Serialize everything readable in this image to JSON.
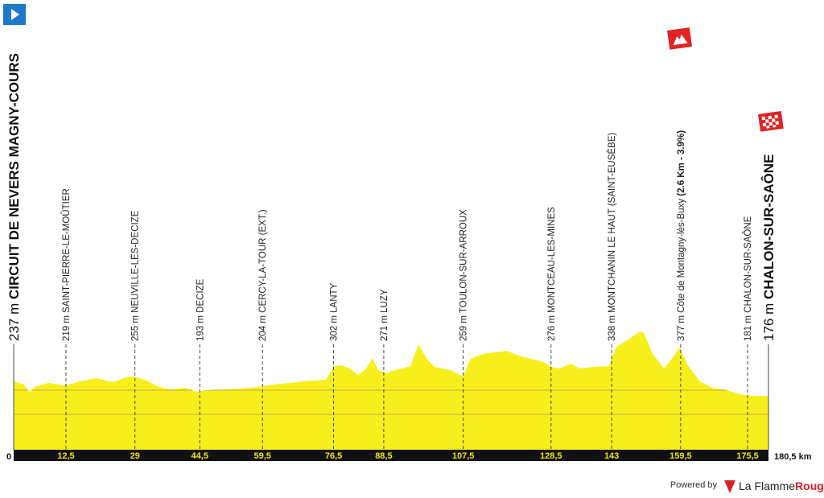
{
  "chart_data": {
    "type": "profile",
    "xlim": [
      0,
      180.5
    ],
    "xticks": [
      0,
      {
        "value": 12.5,
        "label": "12,5"
      },
      29,
      {
        "value": 44.5,
        "label": "44,5"
      },
      {
        "value": 59.5,
        "label": "59,5"
      },
      {
        "value": 76.5,
        "label": "76,5"
      },
      {
        "value": 88.5,
        "label": "88,5"
      },
      {
        "value": 107.5,
        "label": "107,5"
      },
      {
        "value": 128.5,
        "label": "128,5"
      },
      143,
      {
        "value": 159.5,
        "label": "159,5"
      },
      {
        "value": 175.5,
        "label": "175,5"
      },
      {
        "value": 180.5,
        "label": "180,5 km"
      }
    ],
    "waypoints": [
      {
        "altitude": 237,
        "altitude_label": "237 m",
        "name": "CIRCUIT DE NEVERS MAGNY-COURS"
      },
      {
        "altitude": 219,
        "altitude_label": "219 m",
        "name": "SAINT-PIERRE-LE-MOÛTIER"
      },
      {
        "altitude": 255,
        "altitude_label": "255 m",
        "name": "NEUVILLE-LÈS-DECIZE"
      },
      {
        "altitude": 193,
        "altitude_label": "193 m",
        "name": "DECIZE"
      },
      {
        "altitude": 204,
        "altitude_label": "204 m",
        "name": "CERCY-LA-TOUR (EXT.)"
      },
      {
        "altitude": 302,
        "altitude_label": "302 m",
        "name": "LANTY"
      },
      {
        "altitude": 271,
        "altitude_label": "271 m",
        "name": "LUZY"
      },
      {
        "altitude": 259,
        "altitude_label": "259 m",
        "name": "TOULON-SUR-ARROUX"
      },
      {
        "altitude": 276,
        "altitude_label": "276 m",
        "name": "MONTCEAU-LES-MINES"
      },
      {
        "altitude": 338,
        "altitude_label": "338 m",
        "name": "MONTCHANIN LE HAUT (SAINT-EUSÈBE)"
      },
      {
        "altitude": 377,
        "altitude_label": "377 m",
        "name": "Côte de Montagny-lès-Buxy",
        "detail": "(2.6 Km - 3.9%)"
      },
      {
        "altitude": 181,
        "altitude_label": "181 m",
        "name": "CHALON-SUR-SAÔNE"
      },
      {
        "altitude": 176,
        "altitude_label": "176 m",
        "name": "CHALON-SUR-SAÔNE"
      }
    ],
    "profile": {
      "color": "#f7ef1c",
      "x": [
        0,
        2.5,
        3.8,
        5.4,
        8.3,
        11.2,
        12.5,
        16,
        19.8,
        23.7,
        27.5,
        29,
        31.4,
        34.3,
        37.1,
        41,
        43.9,
        45.8,
        49.6,
        54.5,
        58.3,
        62.2,
        66,
        69.8,
        74.7,
        76.6,
        78.5,
        80.4,
        82.4,
        84.3,
        85.8,
        87.2,
        89.1,
        91,
        92.9,
        94.9,
        96.8,
        98.7,
        100.6,
        104.5,
        107.4,
        109.3,
        112.2,
        115.1,
        118,
        120.8,
        123.7,
        126.6,
        128.5,
        130.5,
        133.3,
        135.3,
        139.1,
        142.4,
        144,
        147,
        149.7,
        150.7,
        152.8,
        155.5,
        157.4,
        159.3,
        161.2,
        164.1,
        167,
        169.9,
        173.8,
        175.7,
        180.5
      ],
      "values": [
        237,
        223,
        193,
        217,
        230,
        223,
        219,
        237,
        250,
        233,
        257,
        255,
        243,
        217,
        203,
        210,
        193,
        200,
        203,
        207,
        213,
        223,
        230,
        237,
        243,
        300,
        303,
        290,
        263,
        290,
        333,
        283,
        270,
        283,
        290,
        300,
        390,
        333,
        297,
        283,
        257,
        330,
        350,
        357,
        363,
        343,
        330,
        317,
        297,
        290,
        310,
        290,
        297,
        300,
        377,
        410,
        443,
        437,
        350,
        290,
        330,
        377,
        303,
        237,
        210,
        203,
        183,
        177,
        176
      ]
    },
    "grid_lines": [
      100,
      200
    ]
  },
  "footer": {
    "powered_by": "Powered by",
    "brand_1": "La Flamme",
    "brand_2": "Rouge"
  }
}
